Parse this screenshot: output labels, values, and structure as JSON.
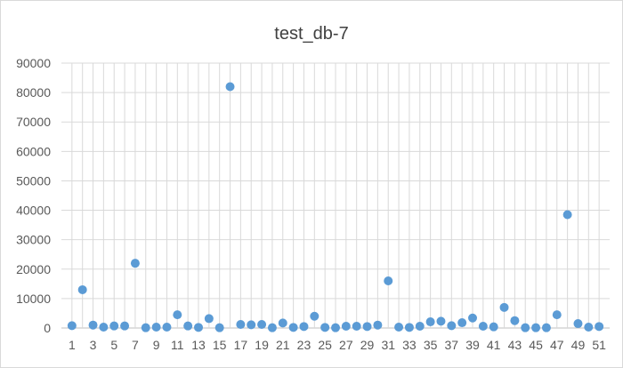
{
  "chart_data": {
    "type": "scatter",
    "title": "test_db-7",
    "xlabel": "",
    "ylabel": "",
    "x": [
      1,
      2,
      3,
      4,
      5,
      6,
      7,
      8,
      9,
      10,
      11,
      12,
      13,
      14,
      15,
      16,
      17,
      18,
      19,
      20,
      21,
      22,
      23,
      24,
      25,
      26,
      27,
      28,
      29,
      30,
      31,
      32,
      33,
      34,
      35,
      36,
      37,
      38,
      39,
      40,
      41,
      42,
      43,
      44,
      45,
      46,
      47,
      48,
      49,
      50,
      51
    ],
    "y": [
      800,
      13000,
      1000,
      300,
      700,
      700,
      22000,
      100,
      300,
      300,
      4500,
      700,
      200,
      3200,
      100,
      82000,
      1200,
      1100,
      1200,
      100,
      1700,
      200,
      500,
      4000,
      200,
      100,
      600,
      600,
      500,
      1000,
      16000,
      300,
      200,
      600,
      2100,
      2300,
      800,
      1800,
      3400,
      600,
      400,
      7000,
      2500,
      100,
      100,
      100,
      4500,
      38500,
      1500,
      300,
      500
    ],
    "ylim": [
      0,
      90000
    ],
    "xlim": [
      0,
      52
    ],
    "y_ticks": [
      "0",
      "10000",
      "20000",
      "30000",
      "40000",
      "50000",
      "60000",
      "70000",
      "80000",
      "90000"
    ],
    "x_ticks": [
      "1",
      "3",
      "5",
      "7",
      "9",
      "11",
      "13",
      "15",
      "17",
      "19",
      "21",
      "23",
      "25",
      "27",
      "29",
      "31",
      "33",
      "35",
      "37",
      "39",
      "41",
      "43",
      "45",
      "47",
      "49",
      "51"
    ],
    "grid": true,
    "legend": "none",
    "marker_color": "#5b9bd5",
    "grid_color": "#d9d9d9"
  }
}
